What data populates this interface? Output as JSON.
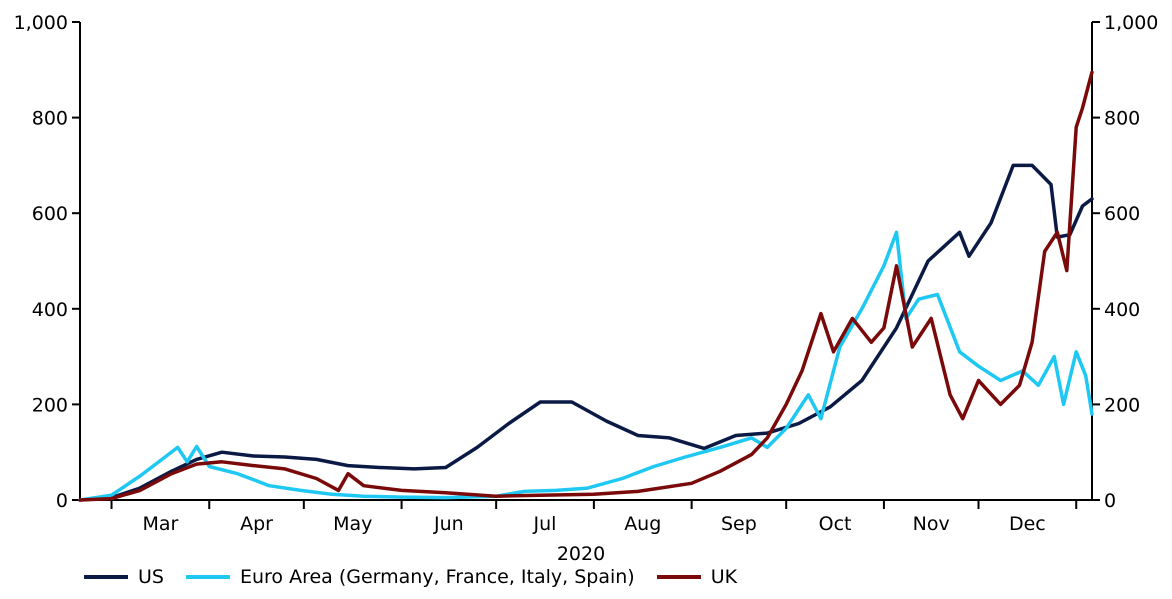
{
  "chart_data": {
    "type": "line",
    "year_label": "2020",
    "x_ticks": [
      "Mar",
      "Apr",
      "May",
      "Jun",
      "Jul",
      "Aug",
      "Sep",
      "Oct",
      "Nov",
      "Dec"
    ],
    "ylim": [
      0,
      1000
    ],
    "y_ticks": [
      "0",
      "200",
      "400",
      "600",
      "800",
      "1,000"
    ],
    "y_tick_values": [
      0,
      200,
      400,
      600,
      800,
      1000
    ],
    "grid": false,
    "legend_position": "bottom",
    "series": [
      {
        "name": "US",
        "color": "#0b1a45",
        "points": [
          [
            "2020-02-20",
            0
          ],
          [
            "2020-03-01",
            5
          ],
          [
            "2020-03-10",
            25
          ],
          [
            "2020-03-20",
            60
          ],
          [
            "2020-03-28",
            85
          ],
          [
            "2020-04-05",
            100
          ],
          [
            "2020-04-15",
            92
          ],
          [
            "2020-04-25",
            90
          ],
          [
            "2020-05-05",
            85
          ],
          [
            "2020-05-15",
            72
          ],
          [
            "2020-05-25",
            68
          ],
          [
            "2020-06-05",
            65
          ],
          [
            "2020-06-15",
            68
          ],
          [
            "2020-06-25",
            110
          ],
          [
            "2020-07-05",
            160
          ],
          [
            "2020-07-15",
            205
          ],
          [
            "2020-07-25",
            205
          ],
          [
            "2020-08-05",
            165
          ],
          [
            "2020-08-15",
            135
          ],
          [
            "2020-08-25",
            130
          ],
          [
            "2020-09-05",
            108
          ],
          [
            "2020-09-15",
            135
          ],
          [
            "2020-09-25",
            140
          ],
          [
            "2020-10-05",
            160
          ],
          [
            "2020-10-15",
            195
          ],
          [
            "2020-10-25",
            250
          ],
          [
            "2020-11-05",
            360
          ],
          [
            "2020-11-15",
            500
          ],
          [
            "2020-11-25",
            560
          ],
          [
            "2020-11-28",
            510
          ],
          [
            "2020-12-05",
            580
          ],
          [
            "2020-12-12",
            700
          ],
          [
            "2020-12-18",
            700
          ],
          [
            "2020-12-24",
            660
          ],
          [
            "2020-12-26",
            550
          ],
          [
            "2020-12-30",
            555
          ],
          [
            "2021-01-03",
            615
          ],
          [
            "2021-01-06",
            630
          ]
        ]
      },
      {
        "name": "Euro Area (Germany, France, Italy, Spain)",
        "color": "#1ec8f2",
        "points": [
          [
            "2020-02-20",
            0
          ],
          [
            "2020-03-01",
            10
          ],
          [
            "2020-03-10",
            50
          ],
          [
            "2020-03-18",
            90
          ],
          [
            "2020-03-22",
            110
          ],
          [
            "2020-03-25",
            80
          ],
          [
            "2020-03-28",
            112
          ],
          [
            "2020-04-01",
            70
          ],
          [
            "2020-04-10",
            55
          ],
          [
            "2020-04-20",
            30
          ],
          [
            "2020-04-30",
            20
          ],
          [
            "2020-05-10",
            12
          ],
          [
            "2020-05-20",
            8
          ],
          [
            "2020-06-01",
            6
          ],
          [
            "2020-06-15",
            5
          ],
          [
            "2020-07-01",
            8
          ],
          [
            "2020-07-10",
            18
          ],
          [
            "2020-07-20",
            20
          ],
          [
            "2020-07-30",
            25
          ],
          [
            "2020-08-10",
            45
          ],
          [
            "2020-08-20",
            70
          ],
          [
            "2020-08-30",
            90
          ],
          [
            "2020-09-10",
            110
          ],
          [
            "2020-09-20",
            130
          ],
          [
            "2020-09-25",
            110
          ],
          [
            "2020-10-01",
            150
          ],
          [
            "2020-10-08",
            220
          ],
          [
            "2020-10-12",
            170
          ],
          [
            "2020-10-18",
            320
          ],
          [
            "2020-10-25",
            400
          ],
          [
            "2020-11-01",
            490
          ],
          [
            "2020-11-05",
            560
          ],
          [
            "2020-11-08",
            380
          ],
          [
            "2020-11-12",
            420
          ],
          [
            "2020-11-18",
            430
          ],
          [
            "2020-11-25",
            310
          ],
          [
            "2020-12-01",
            280
          ],
          [
            "2020-12-08",
            250
          ],
          [
            "2020-12-15",
            270
          ],
          [
            "2020-12-20",
            240
          ],
          [
            "2020-12-25",
            300
          ],
          [
            "2020-12-28",
            200
          ],
          [
            "2021-01-01",
            310
          ],
          [
            "2021-01-04",
            260
          ],
          [
            "2021-01-06",
            180
          ]
        ]
      },
      {
        "name": "UK",
        "color": "#7a0a0a",
        "points": [
          [
            "2020-02-20",
            0
          ],
          [
            "2020-03-01",
            3
          ],
          [
            "2020-03-10",
            20
          ],
          [
            "2020-03-20",
            55
          ],
          [
            "2020-03-28",
            75
          ],
          [
            "2020-04-05",
            80
          ],
          [
            "2020-04-15",
            72
          ],
          [
            "2020-04-25",
            65
          ],
          [
            "2020-05-05",
            45
          ],
          [
            "2020-05-12",
            20
          ],
          [
            "2020-05-15",
            55
          ],
          [
            "2020-05-20",
            30
          ],
          [
            "2020-06-01",
            20
          ],
          [
            "2020-06-15",
            15
          ],
          [
            "2020-07-01",
            8
          ],
          [
            "2020-07-15",
            10
          ],
          [
            "2020-08-01",
            12
          ],
          [
            "2020-08-15",
            18
          ],
          [
            "2020-09-01",
            35
          ],
          [
            "2020-09-10",
            60
          ],
          [
            "2020-09-20",
            95
          ],
          [
            "2020-09-25",
            130
          ],
          [
            "2020-10-01",
            200
          ],
          [
            "2020-10-06",
            270
          ],
          [
            "2020-10-12",
            390
          ],
          [
            "2020-10-16",
            310
          ],
          [
            "2020-10-22",
            380
          ],
          [
            "2020-10-28",
            330
          ],
          [
            "2020-11-01",
            360
          ],
          [
            "2020-11-05",
            490
          ],
          [
            "2020-11-10",
            320
          ],
          [
            "2020-11-16",
            380
          ],
          [
            "2020-11-22",
            220
          ],
          [
            "2020-11-26",
            170
          ],
          [
            "2020-12-01",
            250
          ],
          [
            "2020-12-08",
            200
          ],
          [
            "2020-12-14",
            240
          ],
          [
            "2020-12-18",
            330
          ],
          [
            "2020-12-22",
            520
          ],
          [
            "2020-12-26",
            560
          ],
          [
            "2020-12-29",
            480
          ],
          [
            "2021-01-01",
            780
          ],
          [
            "2021-01-03",
            820
          ],
          [
            "2021-01-05",
            870
          ],
          [
            "2021-01-06",
            895
          ]
        ]
      }
    ]
  }
}
